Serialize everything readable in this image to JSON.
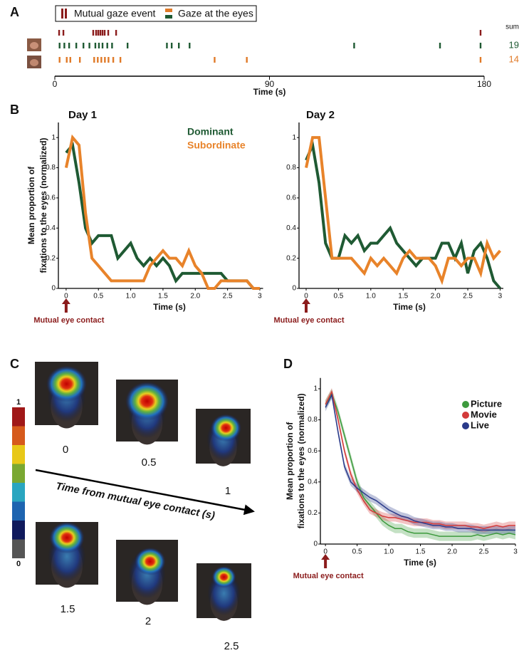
{
  "panel_labels": [
    "A",
    "B",
    "C",
    "D"
  ],
  "chart_data": [
    {
      "type": "raster",
      "xlabel": "Time (s)",
      "xlim": [
        0,
        180
      ],
      "xticks": [
        0,
        90,
        180
      ],
      "gaze_legend": "Gaze at the eyes",
      "sum_label": "sum",
      "series": [
        {
          "name": "Mutual gaze event",
          "color": "#8b1c1c",
          "values": [
            1.8,
            3.6,
            16.1,
            17.3,
            18.2,
            19.1,
            20,
            20.9,
            22.4,
            25.7,
            178.5
          ]
        },
        {
          "color": "#1f5a33",
          "sum": 19,
          "values": [
            2,
            4,
            6,
            9,
            12,
            14.5,
            17,
            18.5,
            20,
            22,
            24,
            30.5,
            47,
            49,
            52,
            56.5,
            125.5,
            161.5,
            178.5
          ]
        },
        {
          "color": "#e07a28",
          "sum": 14,
          "values": [
            2,
            5,
            6.5,
            10.5,
            16.5,
            18,
            19.5,
            21,
            22.5,
            24.5,
            27.5,
            67,
            80.5,
            178.5
          ]
        }
      ]
    },
    {
      "type": "line",
      "title": "Day 1",
      "xlabel": "Time (s)",
      "ylabel": [
        "Mean proportion of",
        "fixations to the eyes (normalized)"
      ],
      "annotation": "Mutual eye contact",
      "legend": true,
      "xlim": [
        -0.12,
        3.05
      ],
      "ylim": [
        0,
        1.1
      ],
      "xticks": [
        0,
        0.5,
        {
          "value": 1,
          "label": "1.0"
        },
        1.5,
        {
          "value": 2,
          "label": "2.0"
        },
        2.5,
        3
      ],
      "yticks": [
        0,
        0.2,
        0.4,
        0.6,
        0.8,
        1
      ],
      "x": [
        0,
        0.1,
        0.2,
        0.3,
        0.4,
        0.5,
        0.6,
        0.7,
        0.8,
        0.9,
        1,
        1.1,
        1.2,
        1.3,
        1.4,
        1.5,
        1.6,
        1.7,
        1.8,
        1.9,
        2,
        2.1,
        2.2,
        2.3,
        2.4,
        2.5,
        2.6,
        2.7,
        2.8,
        2.9,
        3
      ],
      "series": [
        {
          "name": "Dominant",
          "color": "#1f5a33",
          "values": [
            0.9,
            0.95,
            0.7,
            0.4,
            0.3,
            0.35,
            0.35,
            0.35,
            0.2,
            0.25,
            0.3,
            0.2,
            0.15,
            0.2,
            0.15,
            0.2,
            0.15,
            0.05,
            0.1,
            0.1,
            0.1,
            0.1,
            0.1,
            0.1,
            0.1,
            0.05,
            0.05,
            0.05,
            0.05,
            0,
            0
          ]
        },
        {
          "name": "Subordinate",
          "color": "#e8832a",
          "values": [
            0.8,
            1,
            0.95,
            0.5,
            0.2,
            0.15,
            0.1,
            0.05,
            0.05,
            0.05,
            0.05,
            0.05,
            0.05,
            0.15,
            0.2,
            0.25,
            0.2,
            0.2,
            0.15,
            0.25,
            0.15,
            0.1,
            0,
            0,
            0.05,
            0.05,
            0.05,
            0.05,
            0.05,
            0,
            0
          ]
        }
      ]
    },
    {
      "type": "line",
      "title": "Day 2",
      "xlabel": "Time (s)",
      "annotation": "Mutual eye contact",
      "xlim": [
        -0.11,
        3.05
      ],
      "ylim": [
        0,
        1.1
      ],
      "xticks": [
        0,
        0.5,
        {
          "value": 1,
          "label": "1.0"
        },
        1.5,
        {
          "value": 2,
          "label": "2.0"
        },
        2.5,
        3
      ],
      "yticks": [
        0,
        0.2,
        0.4,
        0.6,
        0.8,
        1
      ],
      "x": [
        0,
        0.1,
        0.2,
        0.3,
        0.4,
        0.5,
        0.6,
        0.7,
        0.8,
        0.9,
        1,
        1.1,
        1.2,
        1.3,
        1.4,
        1.5,
        1.6,
        1.7,
        1.8,
        1.9,
        2,
        2.1,
        2.2,
        2.3,
        2.4,
        2.5,
        2.6,
        2.7,
        2.8,
        2.9,
        3
      ],
      "series": [
        {
          "color": "#1f5a33",
          "values": [
            0.85,
            0.95,
            0.7,
            0.3,
            0.2,
            0.2,
            0.35,
            0.3,
            0.35,
            0.25,
            0.3,
            0.3,
            0.35,
            0.4,
            0.3,
            0.25,
            0.2,
            0.15,
            0.2,
            0.2,
            0.2,
            0.3,
            0.3,
            0.2,
            0.3,
            0.1,
            0.25,
            0.3,
            0.2,
            0.05,
            0
          ]
        },
        {
          "color": "#e8832a",
          "values": [
            0.8,
            1,
            1,
            0.6,
            0.2,
            0.2,
            0.2,
            0.2,
            0.15,
            0.1,
            0.2,
            0.15,
            0.2,
            0.15,
            0.1,
            0.2,
            0.25,
            0.2,
            0.2,
            0.2,
            0.15,
            0.05,
            0.2,
            0.2,
            0.15,
            0.2,
            0.2,
            0.1,
            0.3,
            0.2,
            0.25
          ]
        }
      ]
    },
    {
      "type": "line",
      "xlabel": "Time (s)",
      "ylabel": [
        "Mean proportion of",
        "fixations to the eyes (normalized)"
      ],
      "annotation": "Mutual eye contact",
      "legend": true,
      "xlim": [
        -0.08,
        3
      ],
      "ylim": [
        0,
        1.07
      ],
      "xticks": [
        0,
        0.5,
        {
          "value": 1,
          "label": "1.0"
        },
        1.5,
        {
          "value": 2,
          "label": "2.0"
        },
        2.5,
        3
      ],
      "yticks": [
        0,
        0.2,
        0.4,
        0.6,
        0.8,
        1
      ],
      "x": [
        0,
        0.1,
        0.2,
        0.3,
        0.4,
        0.5,
        0.6,
        0.7,
        0.8,
        0.9,
        1,
        1.1,
        1.2,
        1.3,
        1.4,
        1.5,
        1.6,
        1.7,
        1.8,
        1.9,
        2,
        2.1,
        2.2,
        2.3,
        2.4,
        2.5,
        2.6,
        2.7,
        2.8,
        2.9,
        3
      ],
      "series": [
        {
          "name": "Picture",
          "color": "#3d9a3d",
          "error": 0.03,
          "values": [
            0.9,
            0.97,
            0.85,
            0.7,
            0.55,
            0.4,
            0.3,
            0.25,
            0.2,
            0.15,
            0.12,
            0.1,
            0.1,
            0.08,
            0.07,
            0.07,
            0.07,
            0.06,
            0.05,
            0.05,
            0.05,
            0.05,
            0.05,
            0.05,
            0.06,
            0.05,
            0.06,
            0.07,
            0.06,
            0.07,
            0.06
          ]
        },
        {
          "name": "Movie",
          "color": "#d33a3a",
          "error": 0.025,
          "values": [
            0.9,
            0.98,
            0.8,
            0.6,
            0.45,
            0.35,
            0.28,
            0.22,
            0.2,
            0.18,
            0.17,
            0.17,
            0.16,
            0.15,
            0.14,
            0.14,
            0.14,
            0.13,
            0.13,
            0.12,
            0.12,
            0.12,
            0.12,
            0.11,
            0.11,
            0.1,
            0.11,
            0.12,
            0.11,
            0.12,
            0.12
          ]
        },
        {
          "name": "Live",
          "color": "#2a3a8a",
          "error": 0.025,
          "values": [
            0.88,
            0.96,
            0.72,
            0.5,
            0.4,
            0.36,
            0.33,
            0.3,
            0.28,
            0.25,
            0.22,
            0.2,
            0.18,
            0.17,
            0.15,
            0.14,
            0.13,
            0.12,
            0.12,
            0.11,
            0.11,
            0.1,
            0.1,
            0.1,
            0.09,
            0.09,
            0.09,
            0.09,
            0.09,
            0.09,
            0.09
          ]
        }
      ]
    }
  ],
  "heatmap_panel": {
    "colorbar": {
      "top_label": "1",
      "bottom_label": "0",
      "colors": [
        "#a01818",
        "#d65a1c",
        "#e8c818",
        "#7aa832",
        "#2aa6c0",
        "#1e64b0",
        "#101a5c",
        "#555555"
      ]
    },
    "arrow_label": "Time from mutual eye contact (s)",
    "times": [
      "0",
      "0.5",
      "1",
      "1.5",
      "2",
      "2.5"
    ]
  }
}
